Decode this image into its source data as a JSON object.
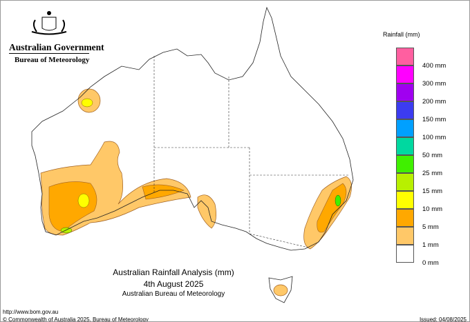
{
  "header": {
    "government": "Australian Government",
    "bureau": "Bureau of Meteorology"
  },
  "map_title": {
    "line1": "Australian Rainfall Analysis (mm)",
    "line2": "4th August 2025",
    "line3": "Australian Bureau of Meteorology"
  },
  "legend": {
    "title": "Rainfall (mm)",
    "colors": [
      "#ff5fa0",
      "#ff00ff",
      "#a000f0",
      "#3c3cf0",
      "#00a0ff",
      "#00d8a0",
      "#40f000",
      "#b8f000",
      "#ffff00",
      "#ffa800",
      "#ffc868",
      "#ffffff"
    ],
    "labels": [
      "400 mm",
      "300 mm",
      "200 mm",
      "150 mm",
      "100 mm",
      "50 mm",
      "25 mm",
      "15 mm",
      "10 mm",
      "5 mm",
      "1 mm",
      "0 mm"
    ]
  },
  "footer": {
    "url": "http://www.bom.gov.au",
    "copyright": "© Commonwealth of Australia 2025, Bureau of Meteorology",
    "issued": "Issued: 04/08/2025"
  }
}
